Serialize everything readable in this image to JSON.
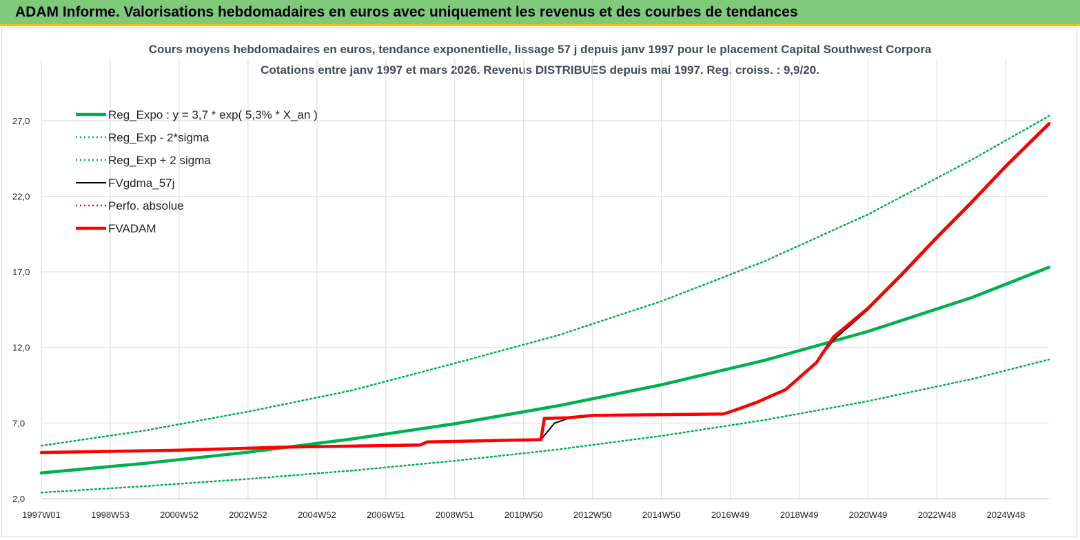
{
  "banner": {
    "title": "ADAM Informe. Valorisations hebdomadaires en euros avec uniquement les revenus et des courbes de tendances"
  },
  "chart_data": {
    "type": "line",
    "title_line1": "Cours moyens hebdomadaires en euros, tendance exponentielle, lissage 57 j depuis janv 1997  pour le placement Capital Southwest Corpora",
    "title_line2": "Cotations entre janv 1997 et mars 2026. Revenus DISTRIBUES depuis mai 1997. Reg. croiss. : 9,9/20.",
    "x_tick_labels": [
      "1997W01",
      "1998W53",
      "2000W52",
      "2002W52",
      "2004W52",
      "2006W51",
      "2008W51",
      "2010W50",
      "2012W50",
      "2014W50",
      "2016W49",
      "2018W49",
      "2020W49",
      "2022W48",
      "2024W48"
    ],
    "x_ticks_years": [
      1997.0,
      1999.0,
      2001.0,
      2003.0,
      2005.0,
      2007.0,
      2009.0,
      2011.0,
      2013.0,
      2015.0,
      2017.0,
      2019.0,
      2021.0,
      2023.0,
      2025.0
    ],
    "xlim": [
      1997.0,
      2026.25
    ],
    "y_tick_labels": [
      "2,0",
      "7,0",
      "12,0",
      "17,0",
      "22,0",
      "27,0"
    ],
    "y_ticks": [
      2,
      7,
      12,
      17,
      22,
      27
    ],
    "ylim": [
      2,
      29.5
    ],
    "grid": true,
    "legend_position": "top-left",
    "colors": {
      "green": "#00b050",
      "red": "#ff0000",
      "black": "#000000"
    },
    "series": [
      {
        "name": "Reg_Expo : y = 3,7 * exp( 5,3% *  X_an )",
        "style": "solid-thick",
        "color": "#00b050",
        "x": [
          1997.0,
          2000.0,
          2003.0,
          2006.0,
          2009.0,
          2012.0,
          2015.0,
          2018.0,
          2021.0,
          2024.0,
          2026.25
        ],
        "y": [
          3.7,
          4.33,
          5.07,
          5.94,
          6.95,
          8.14,
          9.53,
          11.15,
          13.06,
          15.29,
          17.3
        ]
      },
      {
        "name": "Reg_Exp - 2*sigma",
        "style": "dotted",
        "color": "#00b050",
        "x": [
          1997.0,
          2000.0,
          2003.0,
          2006.0,
          2009.0,
          2012.0,
          2015.0,
          2018.0,
          2021.0,
          2024.0,
          2026.25
        ],
        "y": [
          2.4,
          2.82,
          3.3,
          3.85,
          4.5,
          5.25,
          6.15,
          7.2,
          8.45,
          9.9,
          11.2
        ]
      },
      {
        "name": "Reg_Exp + 2 sigma",
        "style": "dotted",
        "color": "#00b050",
        "x": [
          1997.0,
          2000.0,
          2003.0,
          2006.0,
          2009.0,
          2012.0,
          2015.0,
          2018.0,
          2021.0,
          2024.0,
          2026.25
        ],
        "y": [
          5.5,
          6.5,
          7.75,
          9.15,
          10.95,
          12.8,
          15.05,
          17.7,
          20.8,
          24.4,
          27.3
        ]
      },
      {
        "name": "FVgdma_57j",
        "style": "solid-thin",
        "color": "#000000",
        "x": [
          1997.0,
          2001.0,
          2004.0,
          2008.0,
          2008.2,
          2011.5,
          2011.9,
          2012.3,
          2013.0,
          2016.8,
          2017.2,
          2017.8,
          2018.6,
          2019.0,
          2019.5,
          2020.0,
          2021.0,
          2022.0,
          2023.0,
          2024.0,
          2025.0,
          2026.25
        ],
        "y": [
          5.05,
          5.2,
          5.4,
          5.55,
          5.7,
          5.9,
          7.0,
          7.3,
          7.5,
          7.6,
          7.85,
          8.4,
          9.2,
          10.0,
          11.0,
          12.5,
          14.5,
          16.8,
          19.2,
          21.5,
          23.9,
          26.7
        ]
      },
      {
        "name": "Perfo. absolue",
        "style": "dotted",
        "color": "#ff0000",
        "x": [
          1997.0,
          2001.0,
          2004.0,
          2008.0,
          2008.2,
          2011.5,
          2011.6,
          2012.3,
          2013.0,
          2016.8,
          2017.2,
          2017.8,
          2018.6,
          2019.0,
          2019.5,
          2020.0,
          2021.0,
          2022.0,
          2023.0,
          2024.0,
          2025.0,
          2026.25
        ],
        "y": [
          5.05,
          5.2,
          5.4,
          5.55,
          5.75,
          5.9,
          7.3,
          7.35,
          7.5,
          7.6,
          7.9,
          8.4,
          9.2,
          10.0,
          11.0,
          12.7,
          14.6,
          16.9,
          19.3,
          21.6,
          24.0,
          26.8
        ]
      },
      {
        "name": "FVADAM",
        "style": "solid-thick",
        "color": "#ff0000",
        "x": [
          1997.0,
          2001.0,
          2004.0,
          2008.0,
          2008.2,
          2011.5,
          2011.6,
          2012.3,
          2013.0,
          2016.8,
          2017.2,
          2017.8,
          2018.6,
          2019.0,
          2019.5,
          2020.0,
          2021.0,
          2022.0,
          2023.0,
          2024.0,
          2025.0,
          2026.25
        ],
        "y": [
          5.05,
          5.2,
          5.4,
          5.55,
          5.75,
          5.9,
          7.3,
          7.35,
          7.5,
          7.6,
          7.9,
          8.4,
          9.2,
          10.0,
          11.0,
          12.7,
          14.6,
          16.9,
          19.3,
          21.6,
          24.0,
          26.8
        ]
      }
    ]
  }
}
